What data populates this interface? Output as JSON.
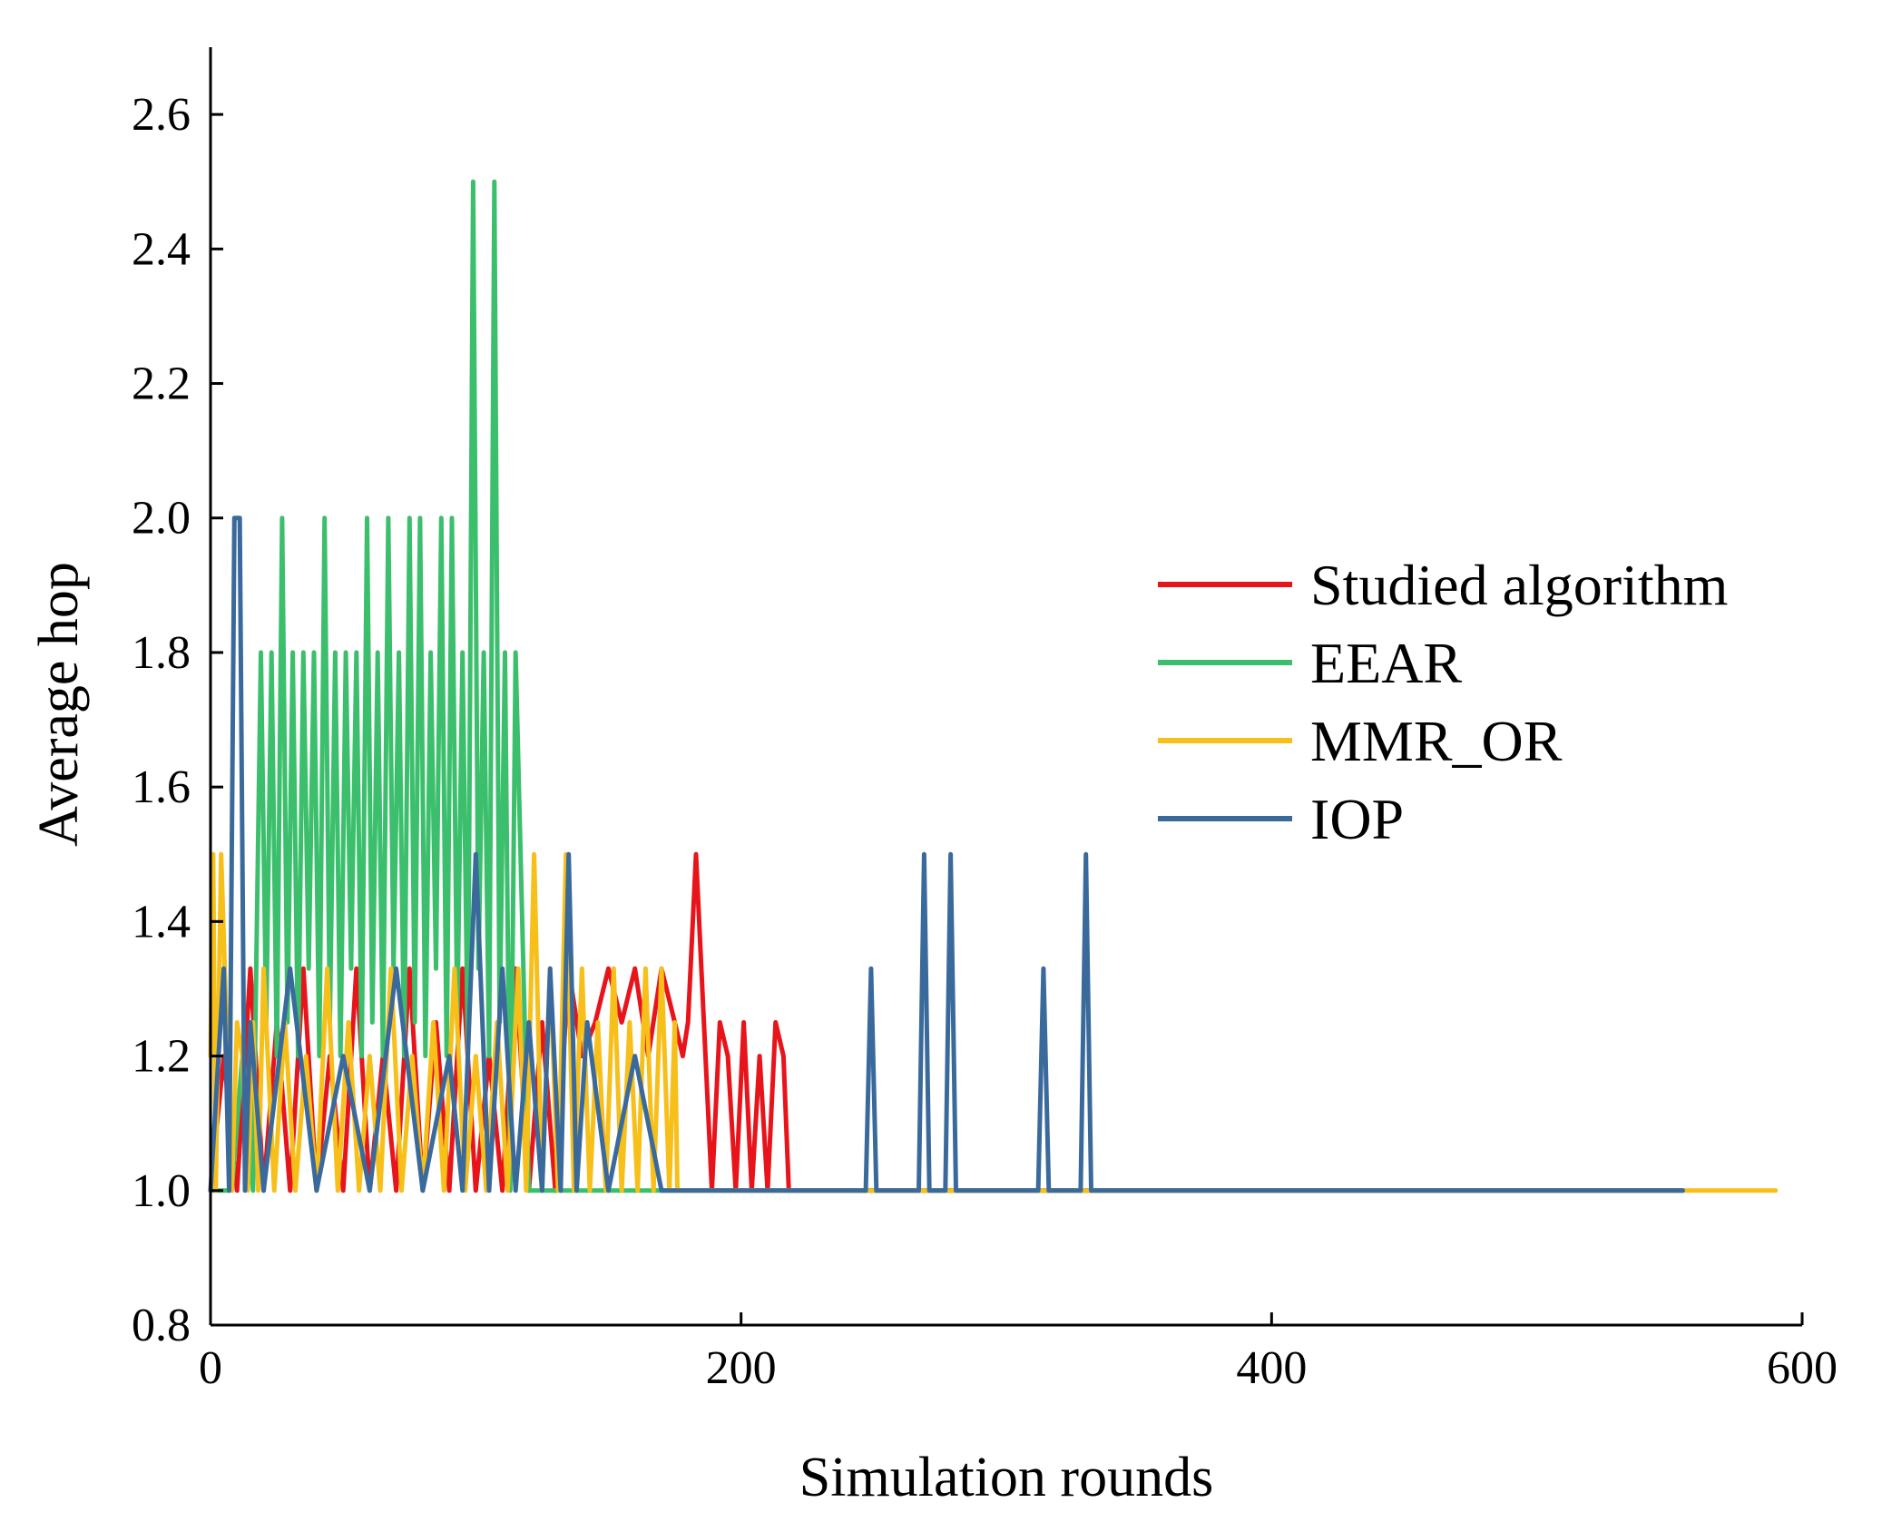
{
  "chart_data": {
    "type": "line",
    "title": "",
    "xlabel": "Simulation rounds",
    "ylabel": "Average hop",
    "xlim": [
      0,
      600
    ],
    "ylim": [
      0.8,
      2.7
    ],
    "xticks": [
      0,
      200,
      400,
      600
    ],
    "xtick_labels": [
      "0",
      "200",
      "400",
      "600"
    ],
    "yticks": [
      0.8,
      1.0,
      1.2,
      1.4,
      1.6,
      1.8,
      2.0,
      2.2,
      2.4,
      2.6
    ],
    "ytick_labels": [
      "0.8",
      "1.0",
      "1.2",
      "1.4",
      "1.6",
      "1.8",
      "2.0",
      "2.2",
      "2.4",
      "2.6"
    ],
    "grid": false,
    "legend_position": "center-right",
    "series": [
      {
        "name": "Studied algorithm",
        "color": "#e8141b",
        "x": [
          0,
          5,
          10,
          15,
          20,
          25,
          30,
          35,
          40,
          45,
          50,
          55,
          60,
          65,
          70,
          75,
          80,
          85,
          90,
          95,
          100,
          105,
          110,
          115,
          120,
          125,
          130,
          135,
          140,
          145,
          150,
          155,
          160,
          165,
          170,
          175,
          178,
          180,
          183,
          186,
          189,
          192,
          195,
          198,
          201,
          204,
          207,
          210,
          213,
          216,
          218,
          220,
          230,
          300,
          400,
          500,
          550,
          555
        ],
        "y": [
          1.0,
          1.2,
          1.0,
          1.33,
          1.0,
          1.25,
          1.0,
          1.33,
          1.0,
          1.2,
          1.0,
          1.33,
          1.0,
          1.2,
          1.0,
          1.33,
          1.0,
          1.25,
          1.0,
          1.33,
          1.0,
          1.2,
          1.0,
          1.33,
          1.0,
          1.25,
          1.0,
          1.33,
          1.2,
          1.25,
          1.33,
          1.25,
          1.33,
          1.2,
          1.33,
          1.25,
          1.2,
          1.25,
          1.5,
          1.25,
          1.0,
          1.25,
          1.2,
          1.0,
          1.25,
          1.0,
          1.2,
          1.0,
          1.25,
          1.2,
          1.0,
          1.0,
          1.0,
          1.0,
          1.0,
          1.0,
          1.0,
          1.0
        ]
      },
      {
        "name": "EEAR",
        "color": "#3cbf6c",
        "x": [
          0,
          4,
          8,
          12,
          16,
          19,
          21,
          23,
          25,
          27,
          29,
          31,
          33,
          35,
          37,
          39,
          41,
          43,
          45,
          47,
          49,
          51,
          53,
          55,
          57,
          59,
          61,
          63,
          65,
          67,
          69,
          71,
          73,
          75,
          77,
          79,
          81,
          83,
          85,
          87,
          89,
          91,
          93,
          95,
          97,
          99,
          101,
          103,
          105,
          107,
          109,
          111,
          113,
          115,
          120,
          200,
          300,
          400,
          500,
          555
        ],
        "y": [
          1.0,
          1.0,
          1.0,
          1.2,
          1.0,
          1.8,
          1.25,
          1.8,
          1.2,
          2.0,
          1.25,
          1.8,
          1.2,
          1.8,
          1.33,
          1.8,
          1.2,
          2.0,
          1.25,
          1.8,
          1.2,
          1.8,
          1.33,
          1.8,
          1.2,
          2.0,
          1.25,
          1.8,
          1.2,
          2.0,
          1.33,
          1.8,
          1.2,
          2.0,
          1.25,
          2.0,
          1.2,
          1.8,
          1.33,
          2.0,
          1.2,
          2.0,
          1.25,
          1.8,
          1.2,
          2.5,
          1.33,
          1.8,
          1.2,
          2.5,
          1.25,
          1.8,
          1.0,
          1.8,
          1.0,
          1.0,
          1.0,
          1.0,
          1.0,
          1.0
        ]
      },
      {
        "name": "MMR_OR",
        "color": "#f7bf1a",
        "x": [
          0,
          1,
          2,
          4,
          6,
          8,
          10,
          12,
          14,
          16,
          18,
          20,
          24,
          28,
          32,
          36,
          40,
          44,
          48,
          52,
          56,
          60,
          64,
          68,
          72,
          76,
          80,
          84,
          88,
          92,
          96,
          100,
          104,
          108,
          112,
          116,
          119,
          122,
          125,
          128,
          131,
          134,
          137,
          140,
          143,
          146,
          149,
          152,
          155,
          158,
          161,
          164,
          167,
          170,
          173,
          175,
          176,
          180,
          300,
          400,
          520,
          525,
          530,
          560,
          590
        ],
        "y": [
          1.2,
          1.5,
          1.0,
          1.5,
          1.25,
          1.0,
          1.25,
          1.2,
          1.0,
          1.25,
          1.0,
          1.33,
          1.0,
          1.25,
          1.0,
          1.2,
          1.0,
          1.33,
          1.0,
          1.25,
          1.0,
          1.2,
          1.0,
          1.33,
          1.0,
          1.2,
          1.0,
          1.25,
          1.0,
          1.33,
          1.0,
          1.2,
          1.0,
          1.25,
          1.0,
          1.33,
          1.0,
          1.5,
          1.0,
          1.33,
          1.0,
          1.5,
          1.0,
          1.33,
          1.0,
          1.25,
          1.0,
          1.33,
          1.0,
          1.25,
          1.0,
          1.33,
          1.0,
          1.33,
          1.0,
          1.25,
          1.0,
          1.0,
          1.0,
          1.0,
          1.0,
          1.0,
          1.0,
          1.0,
          1.0
        ]
      },
      {
        "name": "IOP",
        "color": "#3a6a9c",
        "x": [
          0,
          5,
          7,
          9,
          11,
          13,
          15,
          20,
          30,
          40,
          50,
          60,
          70,
          80,
          90,
          95,
          100,
          105,
          110,
          115,
          120,
          125,
          128,
          132,
          135,
          138,
          142,
          150,
          160,
          170,
          180,
          247,
          249,
          251,
          267,
          269,
          271,
          277,
          279,
          281,
          312,
          314,
          316,
          328,
          330,
          332,
          350,
          450,
          555
        ],
        "y": [
          1.0,
          1.33,
          1.0,
          2.0,
          2.0,
          1.0,
          1.25,
          1.0,
          1.33,
          1.0,
          1.2,
          1.0,
          1.33,
          1.0,
          1.2,
          1.0,
          1.5,
          1.0,
          1.33,
          1.0,
          1.25,
          1.0,
          1.33,
          1.0,
          1.5,
          1.0,
          1.25,
          1.0,
          1.2,
          1.0,
          1.0,
          1.0,
          1.33,
          1.0,
          1.0,
          1.5,
          1.0,
          1.0,
          1.5,
          1.0,
          1.0,
          1.33,
          1.0,
          1.0,
          1.5,
          1.0,
          1.0,
          1.0,
          1.0
        ]
      }
    ]
  }
}
